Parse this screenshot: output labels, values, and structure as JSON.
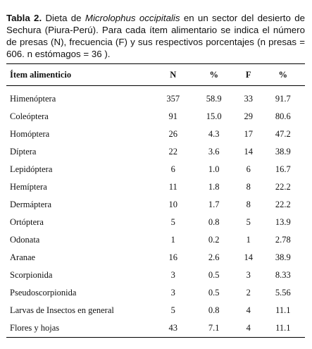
{
  "caption": {
    "label": "Tabla 2.",
    "text_before": " Dieta de ",
    "species": "Microlophus occipitalis",
    "text_after": " en un sector del desierto de Sechura (Piura-Perú). Para cada ítem alimentario se indica el número de presas (N), frecuencia (F) y sus respectivos porcentajes (n presas = 606. n estómagos = 36 )."
  },
  "table": {
    "header": [
      "Ítem alimenticio",
      "N",
      "%",
      "F",
      "%"
    ],
    "rows": [
      [
        "Himenóptera",
        "357",
        "58.9",
        "33",
        "91.7"
      ],
      [
        "Coleóptera",
        "91",
        "15.0",
        "29",
        "80.6"
      ],
      [
        "Homóptera",
        "26",
        "4.3",
        "17",
        "47.2"
      ],
      [
        "Díptera",
        "22",
        "3.6",
        "14",
        "38.9"
      ],
      [
        "Lepidóptera",
        "6",
        "1.0",
        "6",
        "16.7"
      ],
      [
        "Hemíptera",
        "11",
        "1.8",
        "8",
        "22.2"
      ],
      [
        "Dermáptera",
        "10",
        "1.7",
        "8",
        "22.2"
      ],
      [
        "Ortóptera",
        "5",
        "0.8",
        "5",
        "13.9"
      ],
      [
        "Odonata",
        "1",
        "0.2",
        "1",
        "2.78"
      ],
      [
        "Aranae",
        "16",
        "2.6",
        "14",
        "38.9"
      ],
      [
        "Scorpionida",
        "3",
        "0.5",
        "3",
        "8.33"
      ],
      [
        "Pseudoscorpionida",
        "3",
        "0.5",
        "2",
        "5.56"
      ],
      [
        "Larvas de Insectos en general",
        "5",
        "0.8",
        "4",
        "11.1"
      ],
      [
        "Flores y hojas",
        "43",
        "7.1",
        "4",
        "11.1"
      ]
    ]
  }
}
